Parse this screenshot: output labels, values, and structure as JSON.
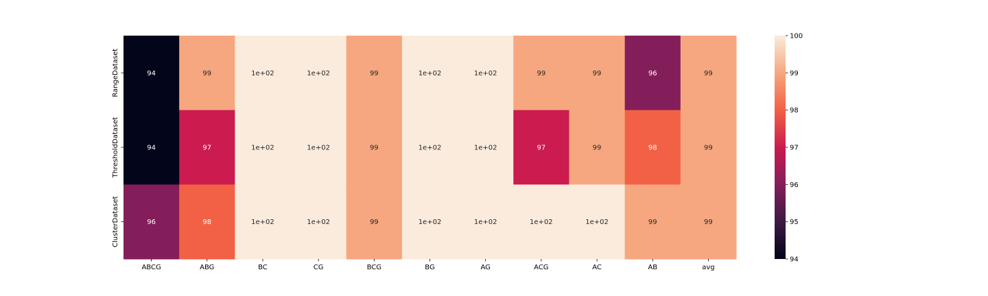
{
  "chart_data": {
    "type": "heatmap",
    "x_categories": [
      "ABCG",
      "ABG",
      "BC",
      "CG",
      "BCG",
      "BG",
      "AG",
      "ACG",
      "AC",
      "AB",
      "avg"
    ],
    "y_categories": [
      "RangeDataset",
      "ThresholdDataset",
      "ClusterDataset"
    ],
    "values": [
      [
        94,
        99,
        100,
        100,
        99,
        100,
        100,
        99,
        99,
        96,
        99
      ],
      [
        94,
        97,
        100,
        100,
        99,
        100,
        100,
        97,
        99,
        98,
        99
      ],
      [
        96,
        98,
        100,
        100,
        99,
        100,
        100,
        100,
        100,
        99,
        99
      ]
    ],
    "annotations": [
      [
        "94",
        "99",
        "1e+02",
        "1e+02",
        "99",
        "1e+02",
        "1e+02",
        "99",
        "99",
        "96",
        "99"
      ],
      [
        "94",
        "97",
        "1e+02",
        "1e+02",
        "99",
        "1e+02",
        "1e+02",
        "97",
        "99",
        "98",
        "99"
      ],
      [
        "96",
        "98",
        "1e+02",
        "1e+02",
        "99",
        "1e+02",
        "1e+02",
        "1e+02",
        "1e+02",
        "99",
        "99"
      ]
    ],
    "colorbar": {
      "min": 94,
      "max": 100,
      "ticks": [
        94,
        95,
        96,
        97,
        98,
        99,
        100
      ],
      "colormap": "rocket",
      "color_stops": [
        {
          "v": 94,
          "c": "#03051a"
        },
        {
          "v": 95,
          "c": "#3c1a42"
        },
        {
          "v": 96,
          "c": "#841e5a"
        },
        {
          "v": 97,
          "c": "#cb1b4f"
        },
        {
          "v": 98,
          "c": "#f26145"
        },
        {
          "v": 99,
          "c": "#f6a77f"
        },
        {
          "v": 100,
          "c": "#faebdd"
        }
      ]
    },
    "title": "",
    "xlabel": "",
    "ylabel": ""
  }
}
